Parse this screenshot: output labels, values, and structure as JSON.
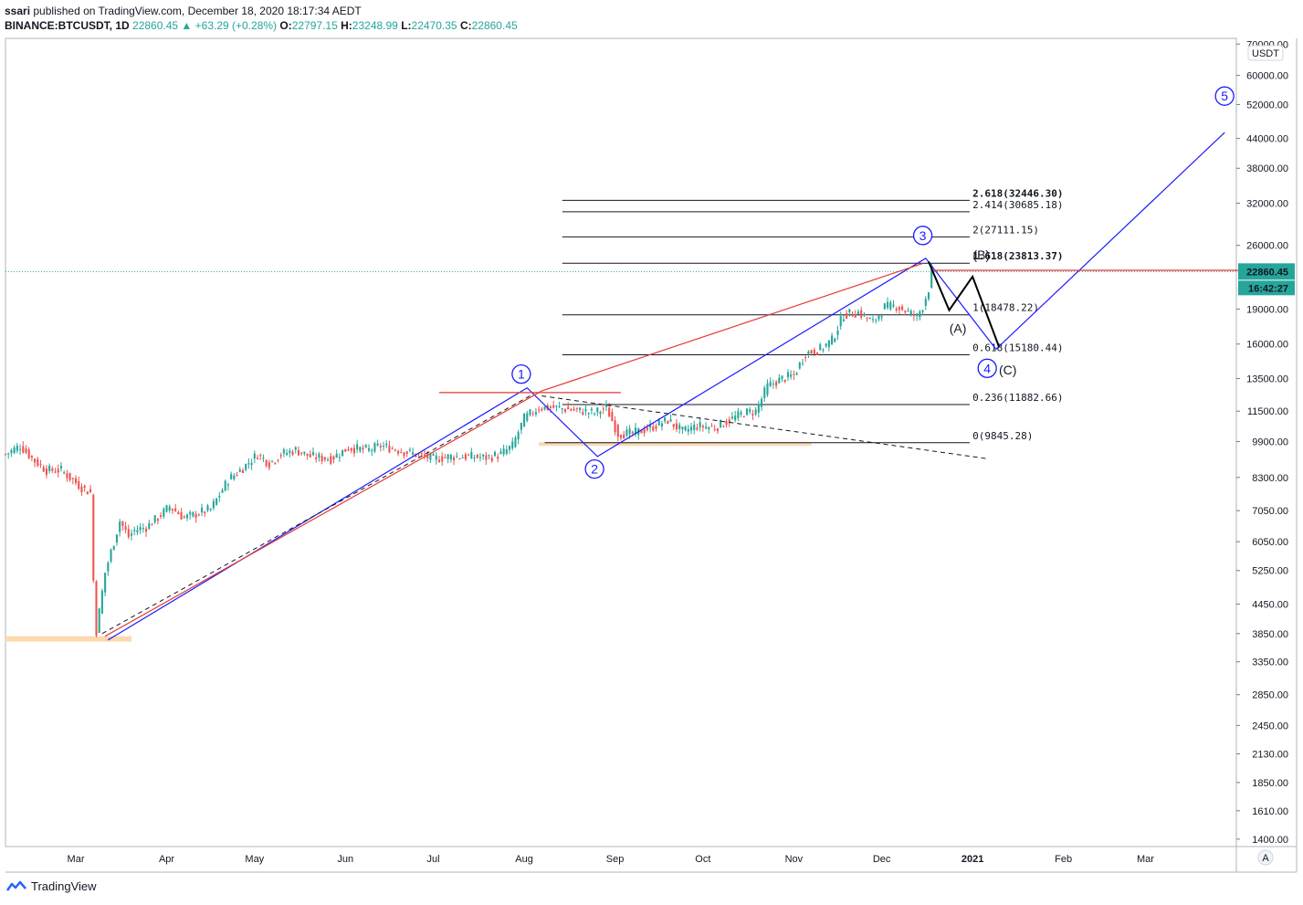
{
  "header": {
    "author": "ssari",
    "published": "published on TradingView.com, December 18, 2020 18:17:34 AEDT",
    "symbol": "BINANCE:BTCUSDT, 1D",
    "last": "22860.45",
    "change": "▲ +63.29 (+0.28%)",
    "o_label": "O:",
    "o": "22797.15",
    "h_label": "H:",
    "h": "23248.99",
    "l_label": "L:",
    "l": "22470.35",
    "c_label": "C:",
    "c": "22860.45"
  },
  "footer": {
    "brand": "TradingView"
  },
  "chart_data": {
    "type": "candlestick",
    "symbol": "BINANCE:BTCUSDT",
    "interval": "1D",
    "currency": "USDT",
    "y_scale": "log",
    "ylim": [
      1350,
      72000
    ],
    "xlim": [
      36.0,
      456.0
    ],
    "y_ticks": [
      "70000.00",
      "60000.00",
      "52000.00",
      "44000.00",
      "38000.00",
      "32000.00",
      "26000.00",
      "19000.00",
      "16000.00",
      "13500.00",
      "11500.00",
      "9900.00",
      "8300.00",
      "7050.00",
      "6050.00",
      "5250.00",
      "4450.00",
      "3850.00",
      "3350.00",
      "2850.00",
      "2450.00",
      "2130.00",
      "1850.00",
      "1610.00",
      "1400.00"
    ],
    "x_ticks": [
      {
        "label": "Mar",
        "day": 60
      },
      {
        "label": "Apr",
        "day": 91
      },
      {
        "label": "May",
        "day": 121
      },
      {
        "label": "Jun",
        "day": 152
      },
      {
        "label": "Jul",
        "day": 182
      },
      {
        "label": "Aug",
        "day": 213
      },
      {
        "label": "Sep",
        "day": 244
      },
      {
        "label": "Oct",
        "day": 274
      },
      {
        "label": "Nov",
        "day": 305
      },
      {
        "label": "Dec",
        "day": 335
      },
      {
        "label": "2021",
        "day": 366
      },
      {
        "label": "Feb",
        "day": 397
      },
      {
        "label": "Mar",
        "day": 425
      }
    ],
    "price_path": [
      [
        36,
        9300
      ],
      [
        41,
        9700
      ],
      [
        46,
        9000
      ],
      [
        50,
        8600
      ],
      [
        55,
        8600
      ],
      [
        62,
        7900
      ],
      [
        65,
        7700
      ],
      [
        66,
        5000
      ],
      [
        67,
        3900
      ],
      [
        70,
        5200
      ],
      [
        75,
        6700
      ],
      [
        78,
        6200
      ],
      [
        80,
        6400
      ],
      [
        84,
        6500
      ],
      [
        89,
        6900
      ],
      [
        92,
        7200
      ],
      [
        97,
        6800
      ],
      [
        100,
        6900
      ],
      [
        106,
        7100
      ],
      [
        112,
        8200
      ],
      [
        117,
        8700
      ],
      [
        122,
        9300
      ],
      [
        126,
        8900
      ],
      [
        130,
        9300
      ],
      [
        135,
        9500
      ],
      [
        140,
        9200
      ],
      [
        147,
        9100
      ],
      [
        153,
        9600
      ],
      [
        160,
        9500
      ],
      [
        164,
        9700
      ],
      [
        170,
        9500
      ],
      [
        176,
        9300
      ],
      [
        182,
        9100
      ],
      [
        188,
        9200
      ],
      [
        194,
        9200
      ],
      [
        200,
        9150
      ],
      [
        205,
        9300
      ],
      [
        209,
        9700
      ],
      [
        213,
        11100
      ],
      [
        218,
        11700
      ],
      [
        224,
        11700
      ],
      [
        228,
        11600
      ],
      [
        233,
        11500
      ],
      [
        237,
        11400
      ],
      [
        241,
        11700
      ],
      [
        245,
        10300
      ],
      [
        250,
        10300
      ],
      [
        256,
        10600
      ],
      [
        262,
        11000
      ],
      [
        267,
        10400
      ],
      [
        272,
        10700
      ],
      [
        278,
        10600
      ],
      [
        283,
        11000
      ],
      [
        288,
        11400
      ],
      [
        292,
        11500
      ],
      [
        296,
        13000
      ],
      [
        301,
        13500
      ],
      [
        305,
        13700
      ],
      [
        309,
        15300
      ],
      [
        314,
        15600
      ],
      [
        318,
        16300
      ],
      [
        322,
        18500
      ],
      [
        327,
        18700
      ],
      [
        332,
        17800
      ],
      [
        336,
        19200
      ],
      [
        340,
        19300
      ],
      [
        344,
        18700
      ],
      [
        347,
        18300
      ],
      [
        349,
        19300
      ],
      [
        351,
        21000
      ],
      [
        352,
        22860.45
      ]
    ],
    "last_price": 22860.45,
    "countdown": "16:42:27",
    "fib_levels": [
      {
        "label": "0(9845.28)",
        "value": 9845.28
      },
      {
        "label": "0.236(11882.66)",
        "value": 11882.66
      },
      {
        "label": "0.618(15180.44)",
        "value": 15180.44
      },
      {
        "label": "1(18478.22)",
        "value": 18478.22
      },
      {
        "label": "1.618(23813.37)",
        "value": 23813.37
      },
      {
        "label": "2(27111.15)",
        "value": 27111.15
      },
      {
        "label": "2.414(30685.18)",
        "value": 30685.18
      },
      {
        "label": "2.618(32446.30)",
        "value": 32446.3
      }
    ],
    "elliott_labels": [
      {
        "label": "1",
        "day": 212,
        "price": 13800
      },
      {
        "label": "2",
        "day": 237,
        "price": 8650
      },
      {
        "label": "3",
        "day": 349,
        "price": 27300
      },
      {
        "label": "4",
        "day": 371,
        "price": 14200
      },
      {
        "label": "5",
        "day": 452,
        "price": 54200
      },
      {
        "label": "(A)",
        "day": 361,
        "price": 17300
      },
      {
        "label": "(B)",
        "day": 369,
        "price": 24800
      },
      {
        "label": "(C)",
        "day": 378,
        "price": 14100
      }
    ],
    "wave_channel_blue": [
      [
        71,
        3730
      ],
      [
        214,
        12900
      ],
      [
        238,
        9200
      ],
      [
        350,
        24400
      ],
      [
        374,
        15600
      ],
      [
        452,
        45300
      ]
    ],
    "zigzag_abc": [
      [
        351,
        24000
      ],
      [
        358,
        18900
      ],
      [
        366,
        22300
      ],
      [
        375,
        15800
      ]
    ],
    "trend_line_red": [
      [
        70,
        3800
      ],
      [
        219,
        12700
      ],
      [
        349,
        23800
      ]
    ],
    "dashed_lines": [
      [
        [
          69,
          3850
        ],
        [
          216,
          12500
        ]
      ],
      [
        [
          219,
          12400
        ],
        [
          371,
          9100
        ]
      ]
    ],
    "horizontal_red": [
      [
        184,
        12600
      ],
      [
        246,
        12600
      ]
    ],
    "horizontal_red_last": [
      [
        352,
        23000
      ],
      [
        469,
        23000
      ]
    ],
    "support_zones": [
      [
        36,
        3750
      ],
      [
        218,
        9780
      ]
    ]
  }
}
